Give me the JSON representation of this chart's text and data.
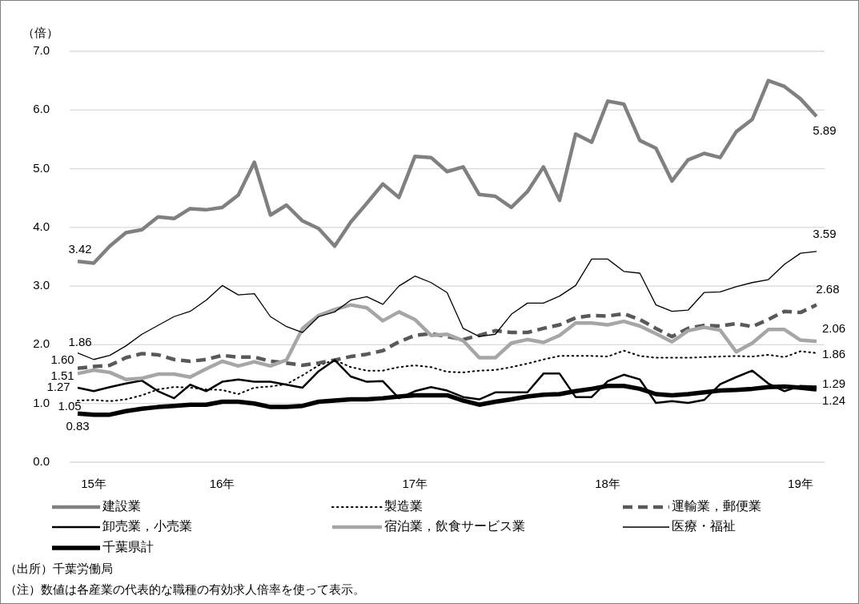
{
  "chart_data": {
    "type": "line",
    "ylabel": "（倍）",
    "ylim": [
      0,
      7
    ],
    "yticks": [
      {
        "value": 0,
        "label": "0.0"
      },
      {
        "value": 1,
        "label": "1.0"
      },
      {
        "value": 2,
        "label": "2.0"
      },
      {
        "value": 3,
        "label": "3.0"
      },
      {
        "value": 4,
        "label": "4.0"
      },
      {
        "value": 5,
        "label": "5.0"
      },
      {
        "value": 6,
        "label": "6.0"
      },
      {
        "value": 7,
        "label": "7.0"
      }
    ],
    "grid": "y",
    "legend": "bottom",
    "categories": [
      null,
      "15年",
      null,
      null,
      null,
      null,
      null,
      null,
      null,
      "16年",
      null,
      null,
      null,
      null,
      null,
      null,
      null,
      null,
      null,
      null,
      null,
      "17年",
      null,
      null,
      null,
      null,
      null,
      null,
      null,
      null,
      null,
      null,
      null,
      "18年",
      null,
      null,
      null,
      null,
      null,
      null,
      null,
      null,
      null,
      null,
      null,
      "19年",
      null
    ],
    "series": [
      {
        "name": "建設業",
        "color": "#808080",
        "line_style": "solid",
        "values": [
          3.42,
          3.39,
          3.68,
          3.91,
          3.96,
          4.18,
          4.15,
          4.32,
          4.3,
          4.34,
          4.55,
          5.11,
          4.21,
          4.38,
          4.11,
          3.98,
          3.68,
          4.09,
          4.41,
          4.74,
          4.51,
          5.21,
          5.19,
          4.95,
          5.03,
          4.56,
          4.53,
          4.34,
          4.61,
          5.03,
          4.46,
          5.59,
          5.45,
          6.15,
          6.1,
          5.48,
          5.35,
          4.79,
          5.15,
          5.26,
          5.19,
          5.63,
          5.84,
          6.5,
          6.4,
          6.19,
          5.89
        ],
        "value_labels": [
          "3.42",
          null,
          null,
          null,
          null,
          null,
          null,
          null,
          null,
          null,
          null,
          null,
          null,
          null,
          null,
          null,
          null,
          null,
          null,
          null,
          null,
          null,
          null,
          null,
          null,
          null,
          null,
          null,
          null,
          null,
          null,
          null,
          null,
          null,
          null,
          null,
          null,
          null,
          null,
          null,
          null,
          null,
          null,
          null,
          null,
          null,
          "5.89"
        ]
      },
      {
        "name": "製造業",
        "color": "#000000",
        "line_style": "dotted",
        "values": [
          1.05,
          1.06,
          1.04,
          1.07,
          1.14,
          1.24,
          1.28,
          1.27,
          1.24,
          1.23,
          1.16,
          1.27,
          1.29,
          1.33,
          1.48,
          1.65,
          1.74,
          1.62,
          1.56,
          1.56,
          1.62,
          1.65,
          1.62,
          1.54,
          1.53,
          1.56,
          1.57,
          1.62,
          1.68,
          1.75,
          1.81,
          1.81,
          1.81,
          1.8,
          1.9,
          1.81,
          1.78,
          1.78,
          1.78,
          1.79,
          1.8,
          1.81,
          1.8,
          1.83,
          1.79,
          1.89,
          1.86
        ],
        "value_labels": [
          "1.05",
          null,
          null,
          null,
          null,
          null,
          null,
          null,
          null,
          null,
          null,
          null,
          null,
          null,
          null,
          null,
          null,
          null,
          null,
          null,
          null,
          null,
          null,
          null,
          null,
          null,
          null,
          null,
          null,
          null,
          null,
          null,
          null,
          null,
          null,
          null,
          null,
          null,
          null,
          null,
          null,
          null,
          null,
          null,
          null,
          null,
          "1.86"
        ]
      },
      {
        "name": "運輸業，郵便業",
        "color": "#595959",
        "line_style": "dashed",
        "values": [
          1.6,
          1.63,
          1.65,
          1.78,
          1.85,
          1.83,
          1.75,
          1.72,
          1.75,
          1.82,
          1.79,
          1.79,
          1.72,
          1.69,
          1.65,
          1.69,
          1.74,
          1.8,
          1.84,
          1.9,
          2.05,
          2.16,
          2.19,
          2.14,
          2.09,
          2.16,
          2.24,
          2.21,
          2.21,
          2.28,
          2.34,
          2.46,
          2.5,
          2.49,
          2.53,
          2.43,
          2.28,
          2.14,
          2.28,
          2.33,
          2.32,
          2.36,
          2.31,
          2.43,
          2.57,
          2.55,
          2.68
        ],
        "value_labels": [
          "1.60",
          null,
          null,
          null,
          null,
          null,
          null,
          null,
          null,
          null,
          null,
          null,
          null,
          null,
          null,
          null,
          null,
          null,
          null,
          null,
          null,
          null,
          null,
          null,
          null,
          null,
          null,
          null,
          null,
          null,
          null,
          null,
          null,
          null,
          null,
          null,
          null,
          null,
          null,
          null,
          null,
          null,
          null,
          null,
          null,
          null,
          "2.68"
        ]
      },
      {
        "name": "卸売業，小売業",
        "color": "#000000",
        "line_style": "solid",
        "values": [
          1.27,
          1.21,
          1.28,
          1.34,
          1.39,
          1.21,
          1.09,
          1.32,
          1.21,
          1.37,
          1.41,
          1.37,
          1.37,
          1.32,
          1.27,
          1.55,
          1.74,
          1.46,
          1.37,
          1.38,
          1.09,
          1.21,
          1.28,
          1.22,
          1.11,
          1.07,
          1.19,
          1.19,
          1.19,
          1.51,
          1.51,
          1.11,
          1.11,
          1.38,
          1.49,
          1.41,
          1.01,
          1.04,
          1.01,
          1.06,
          1.33,
          1.45,
          1.56,
          1.34,
          1.21,
          1.3,
          1.29
        ],
        "value_labels": [
          "1.27",
          null,
          null,
          null,
          null,
          null,
          null,
          null,
          null,
          null,
          null,
          null,
          null,
          null,
          null,
          null,
          null,
          null,
          null,
          null,
          null,
          null,
          null,
          null,
          null,
          null,
          null,
          null,
          null,
          null,
          null,
          null,
          null,
          null,
          null,
          null,
          null,
          null,
          null,
          null,
          null,
          null,
          null,
          null,
          null,
          null,
          "1.29"
        ]
      },
      {
        "name": "宿泊業，飲食サービス業",
        "color": "#a6a6a6",
        "line_style": "solid",
        "values": [
          1.51,
          1.57,
          1.53,
          1.41,
          1.43,
          1.5,
          1.5,
          1.45,
          1.59,
          1.72,
          1.64,
          1.71,
          1.64,
          1.74,
          2.28,
          2.5,
          2.6,
          2.68,
          2.63,
          2.41,
          2.56,
          2.43,
          2.16,
          2.18,
          2.07,
          1.78,
          1.78,
          2.03,
          2.09,
          2.04,
          2.16,
          2.37,
          2.37,
          2.34,
          2.4,
          2.32,
          2.19,
          2.05,
          2.24,
          2.3,
          2.25,
          1.88,
          2.03,
          2.26,
          2.26,
          2.08,
          2.06
        ],
        "value_labels": [
          "1.51",
          null,
          null,
          null,
          null,
          null,
          null,
          null,
          null,
          null,
          null,
          null,
          null,
          null,
          null,
          null,
          null,
          null,
          null,
          null,
          null,
          null,
          null,
          null,
          null,
          null,
          null,
          null,
          null,
          null,
          null,
          null,
          null,
          null,
          null,
          null,
          null,
          null,
          null,
          null,
          null,
          null,
          null,
          null,
          null,
          null,
          "2.06"
        ]
      },
      {
        "name": "医療・福祉",
        "color": "#000000",
        "line_style": "solid",
        "values": [
          1.86,
          1.75,
          1.82,
          1.98,
          2.18,
          2.33,
          2.48,
          2.57,
          2.76,
          3.01,
          2.85,
          2.87,
          2.48,
          2.31,
          2.21,
          2.48,
          2.56,
          2.76,
          2.82,
          2.69,
          3.0,
          3.17,
          3.06,
          2.89,
          2.28,
          2.14,
          2.18,
          2.52,
          2.71,
          2.71,
          2.83,
          3.01,
          3.46,
          3.46,
          3.25,
          3.22,
          2.68,
          2.57,
          2.59,
          2.89,
          2.9,
          2.99,
          3.06,
          3.11,
          3.37,
          3.56,
          3.59
        ],
        "value_labels": [
          "1.86",
          null,
          null,
          null,
          null,
          null,
          null,
          null,
          null,
          null,
          null,
          null,
          null,
          null,
          null,
          null,
          null,
          null,
          null,
          null,
          null,
          null,
          null,
          null,
          null,
          null,
          null,
          null,
          null,
          null,
          null,
          null,
          null,
          null,
          null,
          null,
          null,
          null,
          null,
          null,
          null,
          null,
          null,
          null,
          null,
          null,
          "3.59"
        ]
      },
      {
        "name": "千葉県計",
        "color": "#000000",
        "line_style": "solid",
        "values": [
          0.83,
          0.81,
          0.81,
          0.87,
          0.91,
          0.94,
          0.96,
          0.98,
          0.98,
          1.03,
          1.03,
          1.0,
          0.94,
          0.94,
          0.96,
          1.03,
          1.05,
          1.07,
          1.07,
          1.09,
          1.12,
          1.14,
          1.14,
          1.14,
          1.05,
          0.98,
          1.03,
          1.07,
          1.12,
          1.15,
          1.16,
          1.21,
          1.25,
          1.3,
          1.3,
          1.25,
          1.16,
          1.14,
          1.16,
          1.19,
          1.22,
          1.23,
          1.25,
          1.28,
          1.29,
          1.27,
          1.24
        ],
        "value_labels": [
          "0.83",
          null,
          null,
          null,
          null,
          null,
          null,
          null,
          null,
          null,
          null,
          null,
          null,
          null,
          null,
          null,
          null,
          null,
          null,
          null,
          null,
          null,
          null,
          null,
          null,
          null,
          null,
          null,
          null,
          null,
          null,
          null,
          null,
          null,
          null,
          null,
          null,
          null,
          null,
          null,
          null,
          null,
          null,
          null,
          null,
          null,
          "1.24"
        ]
      }
    ],
    "annotations": [
      "（出所）千葉労働局",
      "（注）数値は各産業の代表的な職種の有効求人倍率を使って表示。"
    ]
  }
}
